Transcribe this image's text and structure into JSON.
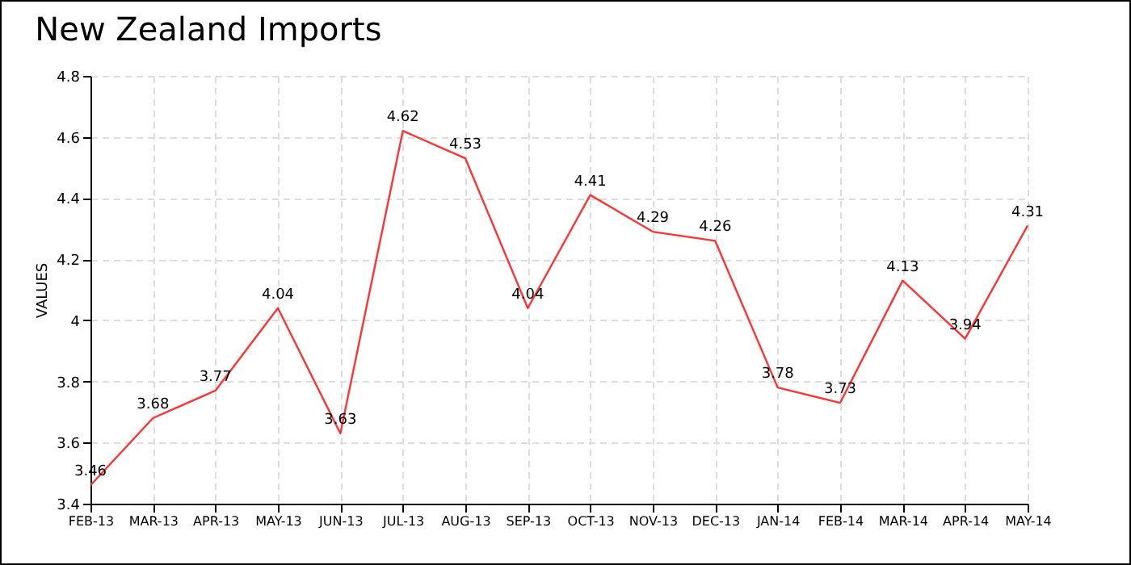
{
  "chart_data": {
    "type": "line",
    "title": "New Zealand Imports",
    "ylabel": "VALUES",
    "categories": [
      "FEB-13",
      "MAR-13",
      "APR-13",
      "MAY-13",
      "JUN-13",
      "JUL-13",
      "AUG-13",
      "SEP-13",
      "OCT-13",
      "NOV-13",
      "DEC-13",
      "JAN-14",
      "FEB-14",
      "MAR-14",
      "APR-14",
      "MAY-14"
    ],
    "series": [
      {
        "color": "#ff3333",
        "values": [
          3.46,
          3.68,
          3.77,
          4.04,
          3.63,
          4.62,
          4.53,
          4.04,
          4.41,
          4.29,
          4.26,
          3.78,
          3.73,
          4.13,
          3.94,
          4.31
        ]
      }
    ],
    "ylim": [
      3.4,
      4.8
    ],
    "yticks": [
      3.4,
      3.6,
      3.8,
      4,
      4.2,
      4.4,
      4.6,
      4.8
    ],
    "grid": true,
    "data_labels": true
  }
}
